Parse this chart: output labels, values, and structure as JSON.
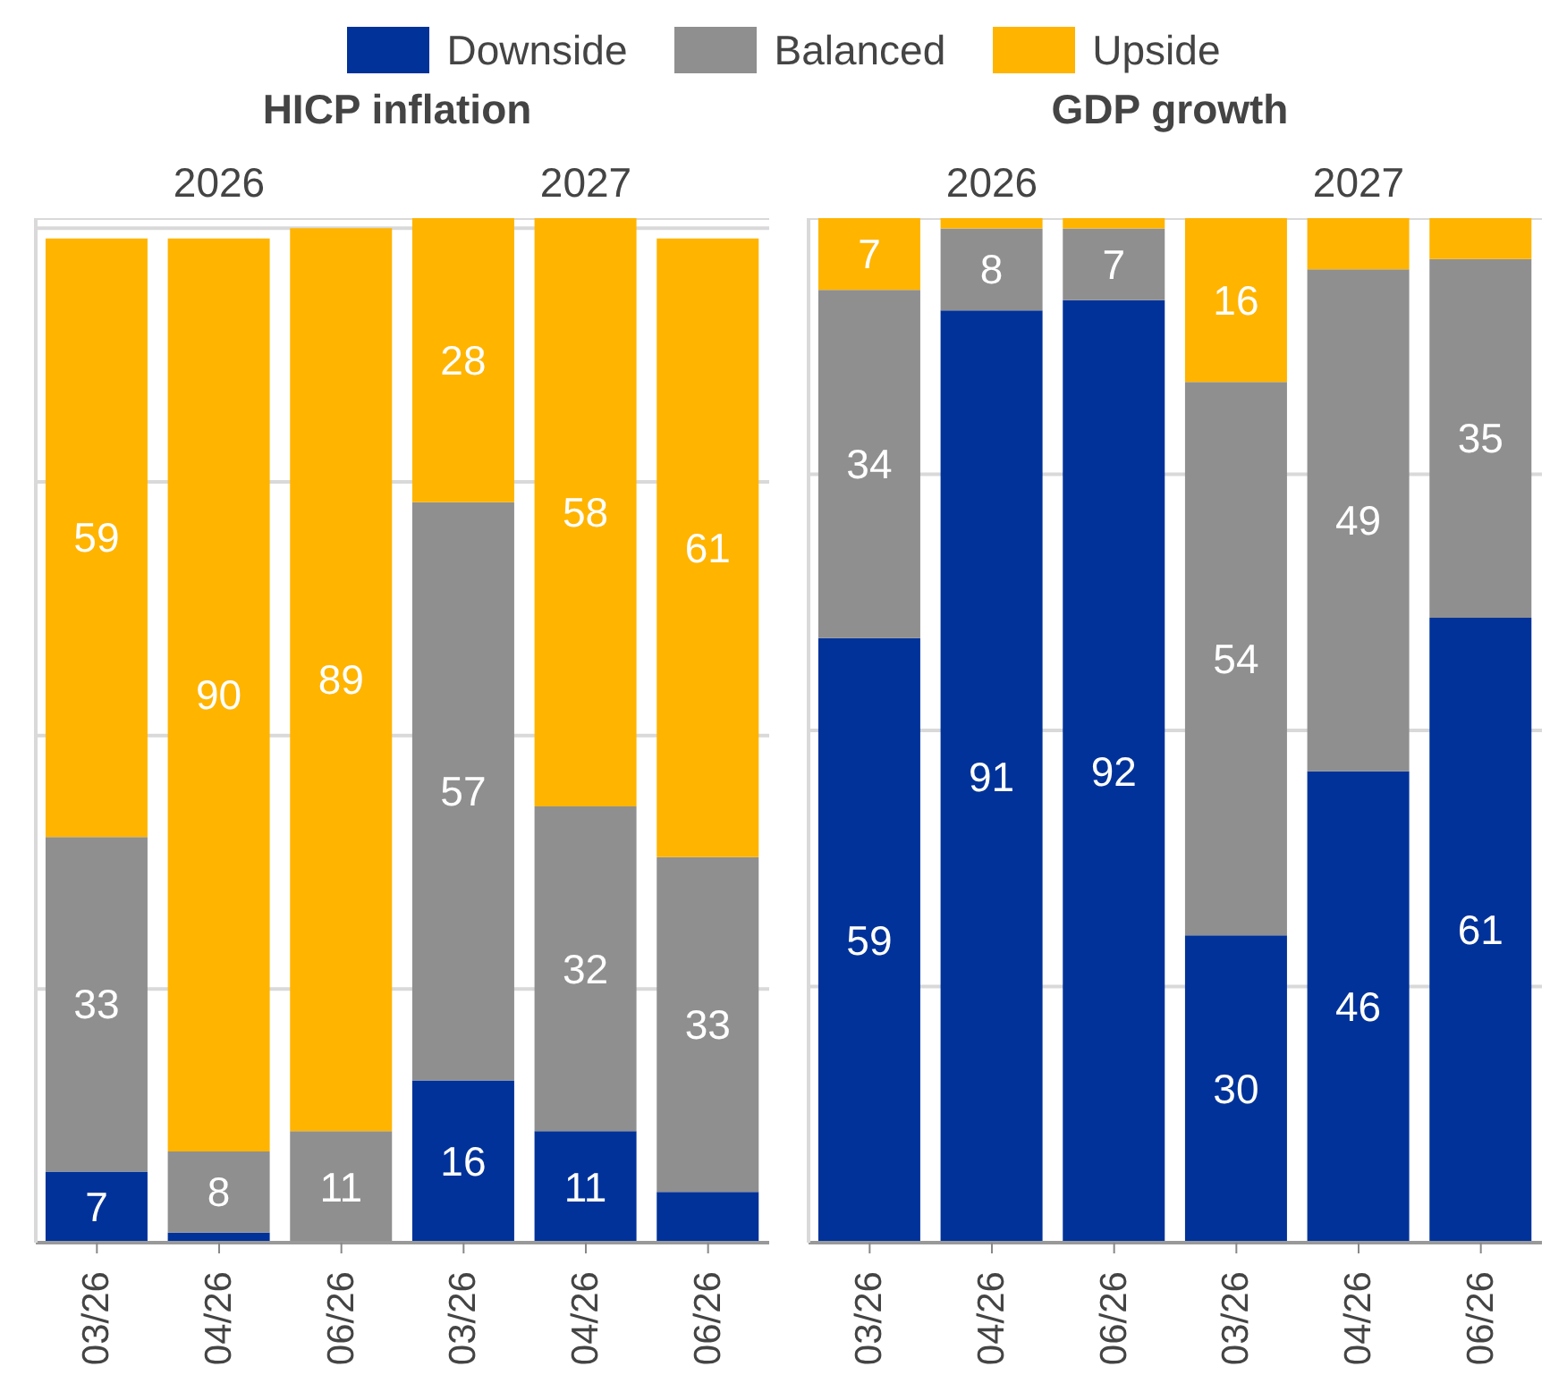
{
  "chart_data": [
    {
      "type": "bar",
      "title": "HICP inflation",
      "stacked": true,
      "legend": "top",
      "grid": "y",
      "tick_labels": "x",
      "annotations": [
        "2026",
        "2027"
      ],
      "categories": [
        "03/26",
        "04/26",
        "06/26",
        "03/26",
        "04/26",
        "06/26"
      ],
      "ylim": [
        0,
        101
      ],
      "yticks": [
        {
          "value": 0,
          "label": null
        },
        {
          "value": 25,
          "label": null
        },
        {
          "value": 50,
          "label": null
        },
        {
          "value": 75,
          "label": null
        },
        {
          "value": 100,
          "label": null
        }
      ],
      "series": [
        {
          "name": "Downside",
          "color": "#003299",
          "values": [
            7,
            1,
            0,
            16,
            11,
            5
          ],
          "value_labels": [
            "7",
            null,
            null,
            "16",
            "11",
            null
          ]
        },
        {
          "name": "Balanced",
          "color": "#8f8f8f",
          "values": [
            33,
            8,
            11,
            57,
            32,
            33
          ],
          "value_labels": [
            "33",
            "8",
            "11",
            "57",
            "32",
            "33"
          ]
        },
        {
          "name": "Upside",
          "color": "#ffb400",
          "values": [
            59,
            90,
            89,
            28,
            58,
            61
          ],
          "value_labels": [
            "59",
            "90",
            "89",
            "28",
            "58",
            "61"
          ]
        }
      ]
    },
    {
      "type": "bar",
      "title": "GDP growth",
      "stacked": true,
      "grid": "y",
      "tick_labels": "x",
      "annotations": [
        "2026",
        "2027"
      ],
      "categories": [
        "03/26",
        "04/26",
        "06/26",
        "03/26",
        "04/26",
        "06/26"
      ],
      "ylim": [
        0,
        100
      ],
      "yticks": [
        {
          "value": 0,
          "label": null
        },
        {
          "value": 25,
          "label": null
        },
        {
          "value": 50,
          "label": null
        },
        {
          "value": 75,
          "label": null
        },
        {
          "value": 100,
          "label": null
        }
      ],
      "series": [
        {
          "color": "#003299",
          "values": [
            59,
            91,
            92,
            30,
            46,
            61
          ],
          "value_labels": [
            "59",
            "91",
            "92",
            "30",
            "46",
            "61"
          ]
        },
        {
          "color": "#8f8f8f",
          "values": [
            34,
            8,
            7,
            54,
            49,
            35
          ],
          "value_labels": [
            "34",
            "8",
            "7",
            "54",
            "49",
            "35"
          ]
        },
        {
          "color": "#ffb400",
          "values": [
            7,
            1,
            1,
            16,
            5,
            4
          ],
          "value_labels": [
            "7",
            null,
            null,
            "16",
            null,
            null
          ]
        }
      ]
    }
  ]
}
